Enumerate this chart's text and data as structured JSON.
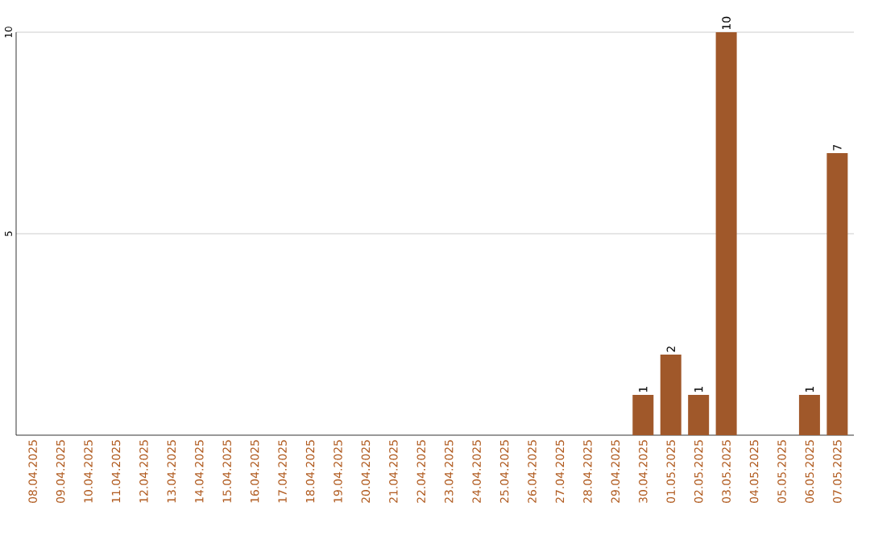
{
  "chart_data": {
    "type": "bar",
    "categories": [
      "08.04.2025",
      "09.04.2025",
      "10.04.2025",
      "11.04.2025",
      "12.04.2025",
      "13.04.2025",
      "14.04.2025",
      "15.04.2025",
      "16.04.2025",
      "17.04.2025",
      "18.04.2025",
      "19.04.2025",
      "20.04.2025",
      "21.04.2025",
      "22.04.2025",
      "23.04.2025",
      "24.04.2025",
      "25.04.2025",
      "26.04.2025",
      "27.04.2025",
      "28.04.2025",
      "29.04.2025",
      "30.04.2025",
      "01.05.2025",
      "02.05.2025",
      "03.05.2025",
      "04.05.2025",
      "05.05.2025",
      "06.05.2025",
      "07.05.2025"
    ],
    "values": [
      0,
      0,
      0,
      0,
      0,
      0,
      0,
      0,
      0,
      0,
      0,
      0,
      0,
      0,
      0,
      0,
      0,
      0,
      0,
      0,
      0,
      0,
      1,
      2,
      1,
      10,
      0,
      0,
      1,
      7
    ],
    "value_labels": [
      null,
      null,
      null,
      null,
      null,
      null,
      null,
      null,
      null,
      null,
      null,
      null,
      null,
      null,
      null,
      null,
      null,
      null,
      null,
      null,
      null,
      null,
      "1",
      "2",
      "1",
      "10",
      null,
      null,
      "1",
      "7"
    ],
    "color": "#a0582a",
    "ylim": [
      0,
      10
    ],
    "yticks": [
      5,
      10
    ],
    "grid": "y"
  }
}
